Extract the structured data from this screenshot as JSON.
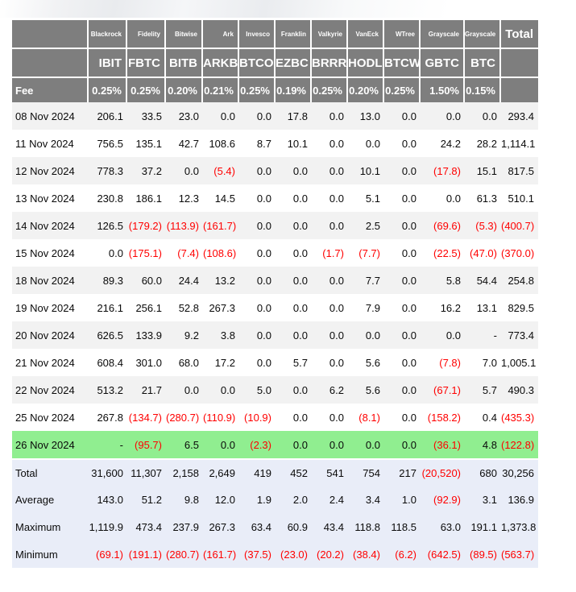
{
  "chart_data": {
    "type": "table",
    "fee_label": "Fee",
    "total_label": "Total",
    "columns": [
      {
        "provider": "Blackrock",
        "ticker": "IBIT",
        "fee": "0.25%"
      },
      {
        "provider": "Fidelity",
        "ticker": "FBTC",
        "fee": "0.25%"
      },
      {
        "provider": "Bitwise",
        "ticker": "BITB",
        "fee": "0.20%"
      },
      {
        "provider": "Ark",
        "ticker": "ARKB",
        "fee": "0.21%"
      },
      {
        "provider": "Invesco",
        "ticker": "BTCO",
        "fee": "0.25%"
      },
      {
        "provider": "Franklin",
        "ticker": "EZBC",
        "fee": "0.19%"
      },
      {
        "provider": "Valkyrie",
        "ticker": "BRRR",
        "fee": "0.25%"
      },
      {
        "provider": "VanEck",
        "ticker": "HODL",
        "fee": "0.20%"
      },
      {
        "provider": "WTree",
        "ticker": "BTCW",
        "fee": "0.25%"
      },
      {
        "provider": "Grayscale",
        "ticker": "GBTC",
        "fee": "1.50%"
      },
      {
        "provider": "Grayscale",
        "ticker": "BTC",
        "fee": "0.15%"
      }
    ],
    "rows": [
      {
        "date": "08 Nov 2024",
        "values": [
          "206.1",
          "33.5",
          "23.0",
          "0.0",
          "0.0",
          "17.8",
          "0.0",
          "13.0",
          "0.0",
          "0.0",
          "0.0"
        ],
        "total": "293.4",
        "highlight": false
      },
      {
        "date": "11 Nov 2024",
        "values": [
          "756.5",
          "135.1",
          "42.7",
          "108.6",
          "8.7",
          "10.1",
          "0.0",
          "0.0",
          "0.0",
          "24.2",
          "28.2"
        ],
        "total": "1,114.1",
        "highlight": false
      },
      {
        "date": "12 Nov 2024",
        "values": [
          "778.3",
          "37.2",
          "0.0",
          "(5.4)",
          "0.0",
          "0.0",
          "0.0",
          "10.1",
          "0.0",
          "(17.8)",
          "15.1"
        ],
        "total": "817.5",
        "highlight": false
      },
      {
        "date": "13 Nov 2024",
        "values": [
          "230.8",
          "186.1",
          "12.3",
          "14.5",
          "0.0",
          "0.0",
          "0.0",
          "5.1",
          "0.0",
          "0.0",
          "61.3"
        ],
        "total": "510.1",
        "highlight": false
      },
      {
        "date": "14 Nov 2024",
        "values": [
          "126.5",
          "(179.2)",
          "(113.9)",
          "(161.7)",
          "0.0",
          "0.0",
          "0.0",
          "2.5",
          "0.0",
          "(69.6)",
          "(5.3)"
        ],
        "total": "(400.7)",
        "highlight": false
      },
      {
        "date": "15 Nov 2024",
        "values": [
          "0.0",
          "(175.1)",
          "(7.4)",
          "(108.6)",
          "0.0",
          "0.0",
          "(1.7)",
          "(7.7)",
          "0.0",
          "(22.5)",
          "(47.0)"
        ],
        "total": "(370.0)",
        "highlight": false
      },
      {
        "date": "18 Nov 2024",
        "values": [
          "89.3",
          "60.0",
          "24.4",
          "13.2",
          "0.0",
          "0.0",
          "0.0",
          "7.7",
          "0.0",
          "5.8",
          "54.4"
        ],
        "total": "254.8",
        "highlight": false
      },
      {
        "date": "19 Nov 2024",
        "values": [
          "216.1",
          "256.1",
          "52.8",
          "267.3",
          "0.0",
          "0.0",
          "0.0",
          "7.9",
          "0.0",
          "16.2",
          "13.1"
        ],
        "total": "829.5",
        "highlight": false
      },
      {
        "date": "20 Nov 2024",
        "values": [
          "626.5",
          "133.9",
          "9.2",
          "3.8",
          "0.0",
          "0.0",
          "0.0",
          "0.0",
          "0.0",
          "0.0",
          "-"
        ],
        "total": "773.4",
        "highlight": false
      },
      {
        "date": "21 Nov 2024",
        "values": [
          "608.4",
          "301.0",
          "68.0",
          "17.2",
          "0.0",
          "5.7",
          "0.0",
          "5.6",
          "0.0",
          "(7.8)",
          "7.0"
        ],
        "total": "1,005.1",
        "highlight": false
      },
      {
        "date": "22 Nov 2024",
        "values": [
          "513.2",
          "21.7",
          "0.0",
          "0.0",
          "5.0",
          "0.0",
          "6.2",
          "5.6",
          "0.0",
          "(67.1)",
          "5.7"
        ],
        "total": "490.3",
        "highlight": false
      },
      {
        "date": "25 Nov 2024",
        "values": [
          "267.8",
          "(134.7)",
          "(280.7)",
          "(110.9)",
          "(10.9)",
          "0.0",
          "0.0",
          "(8.1)",
          "0.0",
          "(158.2)",
          "0.4"
        ],
        "total": "(435.3)",
        "highlight": false
      },
      {
        "date": "26 Nov 2024",
        "values": [
          "-",
          "(95.7)",
          "6.5",
          "0.0",
          "(2.3)",
          "0.0",
          "0.0",
          "0.0",
          "0.0",
          "(36.1)",
          "4.8"
        ],
        "total": "(122.8)",
        "highlight": true
      }
    ],
    "summary": [
      {
        "label": "Total",
        "values": [
          "31,600",
          "11,307",
          "2,158",
          "2,649",
          "419",
          "452",
          "541",
          "754",
          "217",
          "(20,520)",
          "680"
        ],
        "total": "30,256"
      },
      {
        "label": "Average",
        "values": [
          "143.0",
          "51.2",
          "9.8",
          "12.0",
          "1.9",
          "2.0",
          "2.4",
          "3.4",
          "1.0",
          "(92.9)",
          "3.1"
        ],
        "total": "136.9"
      },
      {
        "label": "Maximum",
        "values": [
          "1,119.9",
          "473.4",
          "237.9",
          "267.3",
          "63.4",
          "60.9",
          "43.4",
          "118.8",
          "118.5",
          "63.0",
          "191.1"
        ],
        "total": "1,373.8"
      },
      {
        "label": "Minimum",
        "values": [
          "(69.1)",
          "(191.1)",
          "(280.7)",
          "(161.7)",
          "(37.5)",
          "(23.0)",
          "(20.2)",
          "(38.4)",
          "(6.2)",
          "(642.5)",
          "(89.5)"
        ],
        "total": "(563.7)"
      }
    ]
  },
  "colors": {
    "header_bg": "#7e7e7e",
    "alt_row": "#f2f2f2",
    "highlight_row": "#90ee90",
    "summary_bg": "#e9edf8",
    "negative": "#ff0000"
  }
}
